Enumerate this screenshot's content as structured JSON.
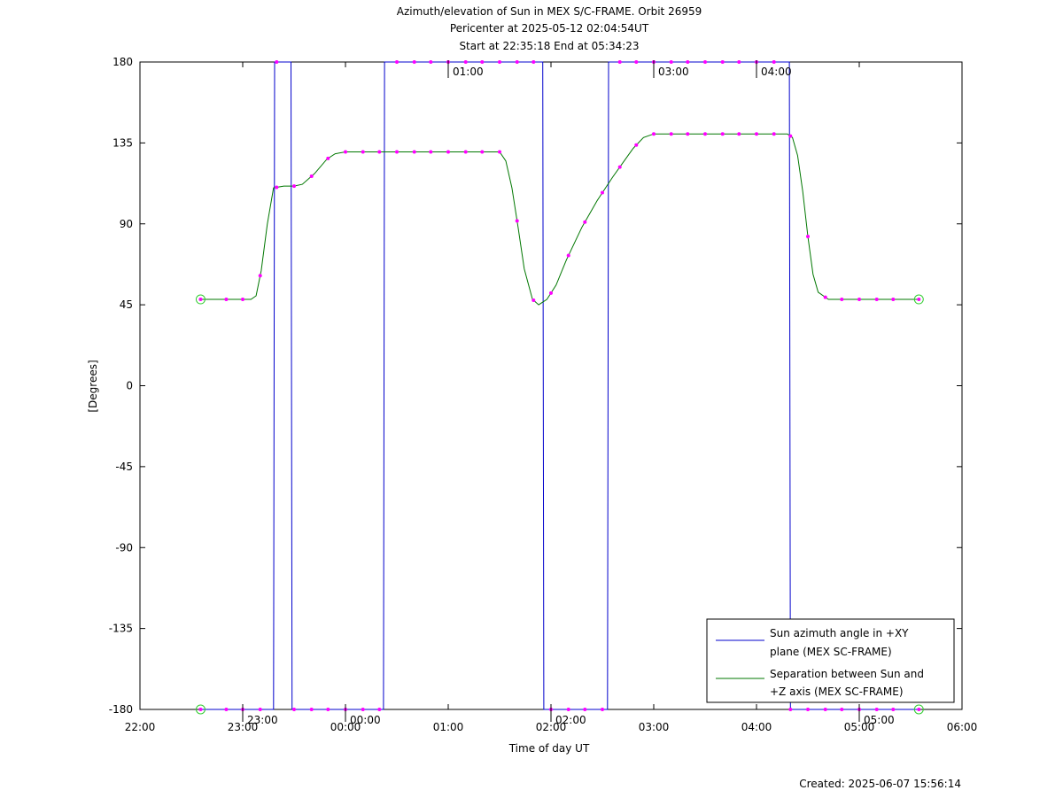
{
  "chart_data": {
    "type": "line",
    "title_lines": [
      "Azimuth/elevation of Sun in MEX S/C-FRAME.  Orbit 26959",
      "Pericenter at 2025-05-12 02:04:54UT",
      "Start at 22:35:18 End at 05:34:23"
    ],
    "xlabel": "Time of day UT",
    "ylabel": "[Degrees]",
    "x_unit": "hours since 22:00 UT",
    "xlim": [
      0,
      8
    ],
    "ylim": [
      -180,
      180
    ],
    "x_ticks": [
      {
        "x": 0,
        "label": "22:00"
      },
      {
        "x": 1,
        "label": "23:00"
      },
      {
        "x": 2,
        "label": "00:00"
      },
      {
        "x": 3,
        "label": "01:00"
      },
      {
        "x": 4,
        "label": "02:00"
      },
      {
        "x": 5,
        "label": "03:00"
      },
      {
        "x": 6,
        "label": "04:00"
      },
      {
        "x": 7,
        "label": "05:00"
      },
      {
        "x": 8,
        "label": "06:00"
      }
    ],
    "y_ticks": [
      180,
      135,
      90,
      45,
      0,
      -45,
      -90,
      -135,
      -180
    ],
    "hour_marks_bottom": [
      {
        "x": 1.0,
        "label": "23:00"
      },
      {
        "x": 2.0,
        "label": "00:00"
      },
      {
        "x": 4.0,
        "label": "02:00"
      },
      {
        "x": 7.0,
        "label": "05:00"
      }
    ],
    "hour_marks_top": [
      {
        "x": 3.0,
        "label": "01:00"
      },
      {
        "x": 5.0,
        "label": "03:00"
      },
      {
        "x": 6.0,
        "label": "04:00"
      }
    ],
    "series": [
      {
        "name": "Sun azimuth angle in +XY plane (MEX SC-FRAME)",
        "name_lines": [
          "Sun azimuth angle in +XY",
          "plane (MEX SC-FRAME)"
        ],
        "color": "#0000cc",
        "x": [
          0.59,
          1.3,
          1.31,
          1.47,
          1.48,
          2.37,
          2.38,
          3.92,
          3.93,
          4.55,
          4.56,
          6.32,
          6.33,
          7.58
        ],
        "y": [
          -180,
          -180,
          180,
          180,
          -180,
          -180,
          180,
          180,
          -180,
          -180,
          180,
          180,
          -180,
          -180
        ]
      },
      {
        "name": "Separation between Sun and +Z axis (MEX SC-FRAME)",
        "name_lines": [
          "Separation between Sun and",
          "+Z axis (MEX SC-FRAME)"
        ],
        "color": "#007700",
        "x": [
          0.59,
          1.08,
          1.13,
          1.18,
          1.24,
          1.3,
          1.4,
          1.5,
          1.58,
          1.7,
          1.82,
          1.9,
          2.0,
          2.2,
          3.5,
          3.56,
          3.62,
          3.68,
          3.74,
          3.82,
          3.88,
          3.96,
          4.05,
          4.15,
          4.3,
          4.45,
          4.6,
          4.7,
          4.8,
          4.9,
          5.0,
          6.3,
          6.35,
          6.4,
          6.45,
          6.5,
          6.55,
          6.6,
          6.7,
          7.58
        ],
        "y": [
          48,
          48,
          50,
          64,
          90,
          110,
          111,
          111,
          112,
          118,
          126,
          129,
          130,
          130,
          130,
          125,
          110,
          88,
          65,
          48,
          45,
          48,
          56,
          70,
          88,
          103,
          116,
          124,
          132,
          138,
          140,
          140,
          138,
          128,
          108,
          83,
          62,
          52,
          48,
          48
        ]
      }
    ],
    "markers_x": [
      0.59,
      0.84,
      1.0,
      1.17,
      1.33,
      1.5,
      1.67,
      1.83,
      2.0,
      2.17,
      2.33,
      2.5,
      2.67,
      2.83,
      3.0,
      3.17,
      3.33,
      3.5,
      3.67,
      3.83,
      4.0,
      4.17,
      4.33,
      4.5,
      4.67,
      4.83,
      5.0,
      5.17,
      5.33,
      5.5,
      5.67,
      5.83,
      6.0,
      6.17,
      6.33,
      6.5,
      6.67,
      6.83,
      7.0,
      7.17,
      7.33,
      7.58
    ],
    "legend_position": "bottom-right",
    "footer": "Created: 2025-06-07 15:56:14"
  }
}
